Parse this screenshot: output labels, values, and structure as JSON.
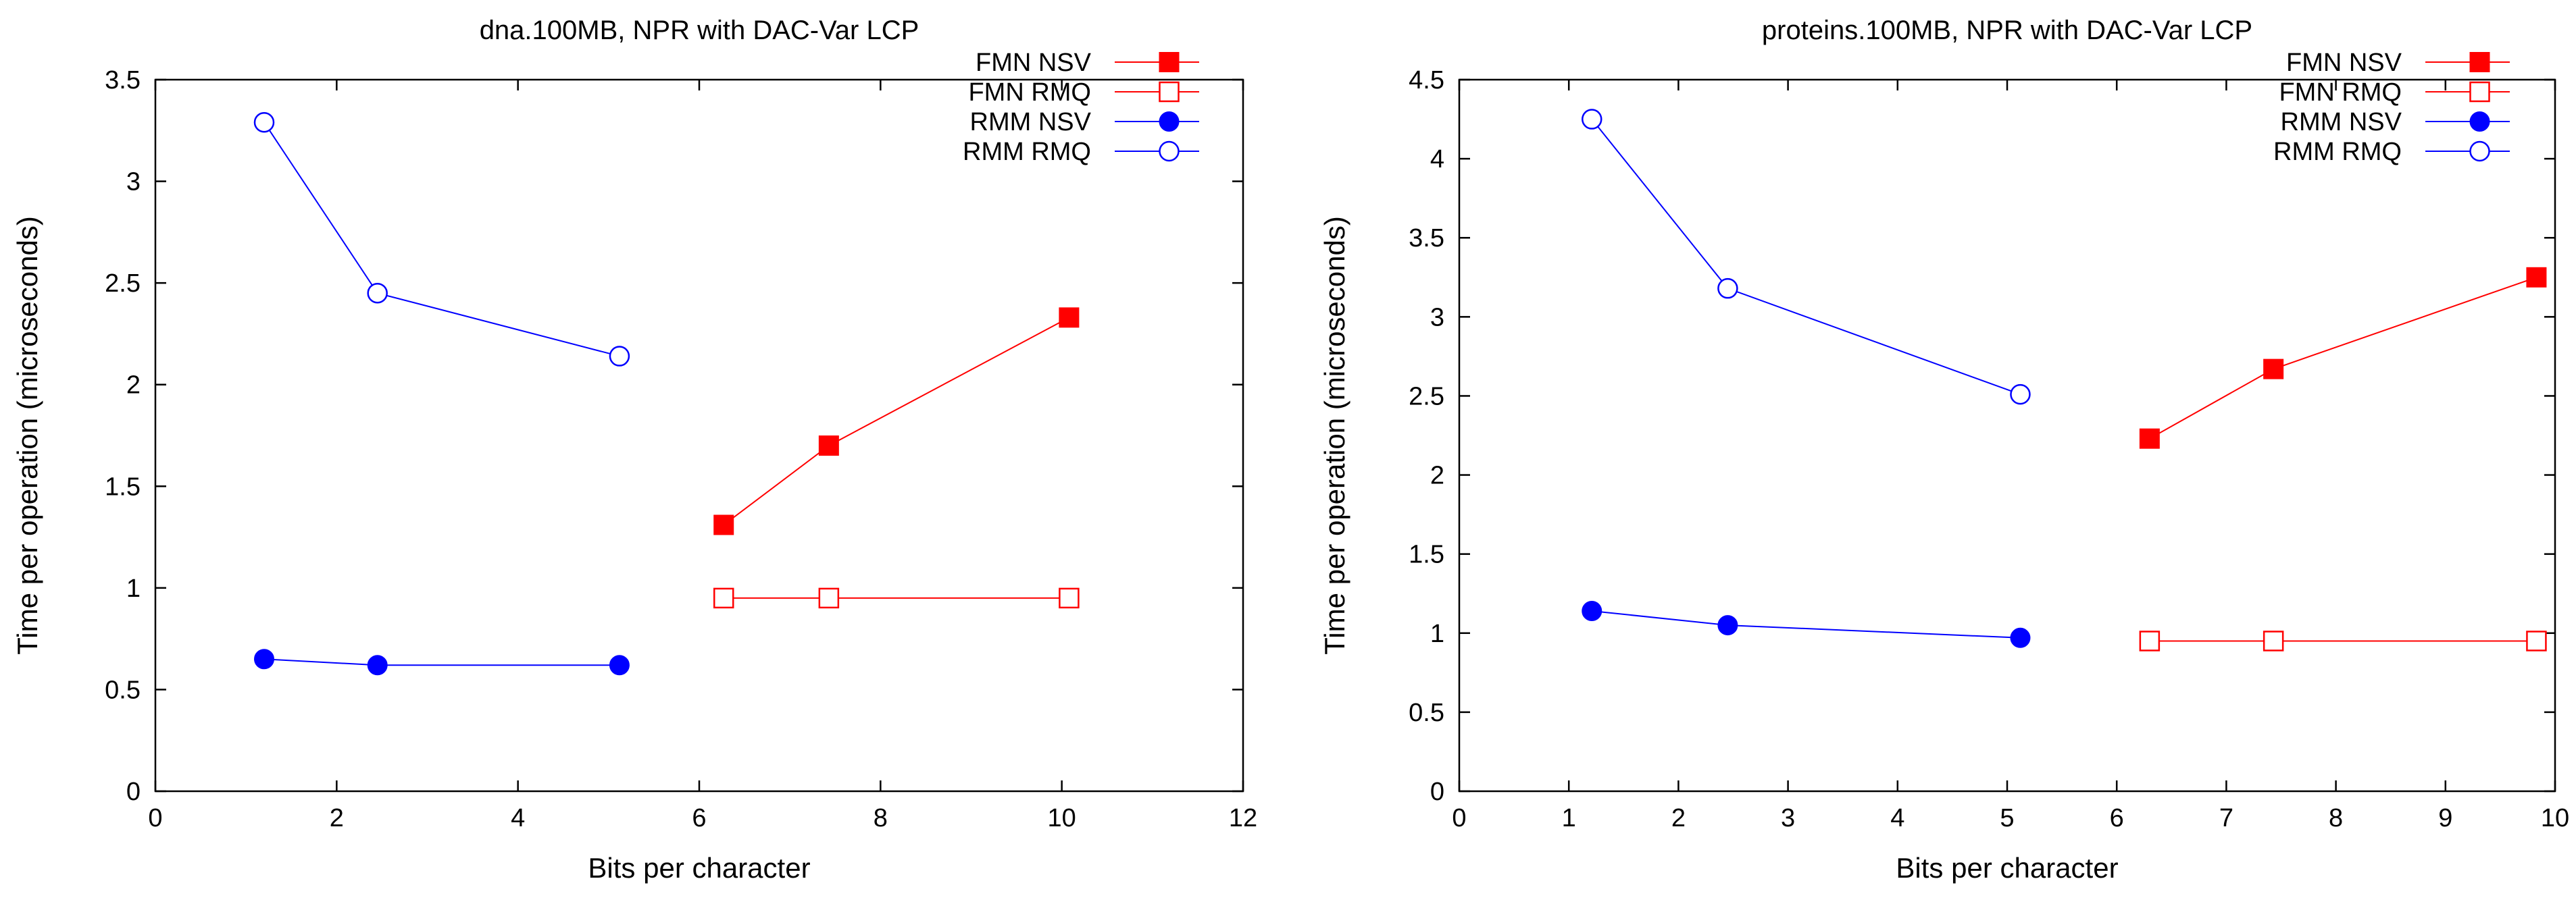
{
  "chart_data": [
    {
      "type": "line",
      "title": "dna.100MB, NPR with DAC-Var LCP",
      "xlabel": "Bits per character",
      "ylabel": "Time per operation (microseconds)",
      "xlim": [
        0,
        12
      ],
      "ylim": [
        0,
        3.5
      ],
      "xticks": [
        0,
        2,
        4,
        6,
        8,
        10,
        12
      ],
      "xtick_labels": [
        "0",
        "2",
        "4",
        "6",
        "8",
        "10",
        "12"
      ],
      "yticks": [
        0,
        0.5,
        1,
        1.5,
        2,
        2.5,
        3,
        3.5
      ],
      "ytick_labels": [
        "0",
        "0.5",
        "1",
        "1.5",
        "2",
        "2.5",
        "3",
        "3.5"
      ],
      "legend_position": "top-right",
      "series": [
        {
          "name": "FMN NSV",
          "color": "#ff0000",
          "marker": "filled-square",
          "x": [
            6.27,
            7.43,
            10.08
          ],
          "y": [
            1.31,
            1.7,
            2.33
          ]
        },
        {
          "name": "FMN RMQ",
          "color": "#ff0000",
          "marker": "open-square",
          "x": [
            6.27,
            7.43,
            10.08
          ],
          "y": [
            0.95,
            0.95,
            0.95
          ]
        },
        {
          "name": "RMM NSV",
          "color": "#0000ff",
          "marker": "filled-circle",
          "x": [
            1.2,
            2.45,
            5.12
          ],
          "y": [
            0.65,
            0.62,
            0.62
          ]
        },
        {
          "name": "RMM RMQ",
          "color": "#0000ff",
          "marker": "open-circle",
          "x": [
            1.2,
            2.45,
            5.12
          ],
          "y": [
            3.29,
            2.45,
            2.14
          ]
        }
      ]
    },
    {
      "type": "line",
      "title": "proteins.100MB, NPR with DAC-Var LCP",
      "xlabel": "Bits per character",
      "ylabel": "Time per operation (microseconds)",
      "xlim": [
        0,
        10
      ],
      "ylim": [
        0,
        4.5
      ],
      "xticks": [
        0,
        1,
        2,
        3,
        4,
        5,
        6,
        7,
        8,
        9,
        10
      ],
      "xtick_labels": [
        "0",
        "1",
        "2",
        "3",
        "4",
        "5",
        "6",
        "7",
        "8",
        "9",
        "10"
      ],
      "yticks": [
        0,
        0.5,
        1,
        1.5,
        2,
        2.5,
        3,
        3.5,
        4,
        4.5
      ],
      "ytick_labels": [
        "0",
        "0.5",
        "1",
        "1.5",
        "2",
        "2.5",
        "3",
        "3.5",
        "4",
        "4.5"
      ],
      "legend_position": "top-right",
      "series": [
        {
          "name": "FMN NSV",
          "color": "#ff0000",
          "marker": "filled-square",
          "x": [
            6.3,
            7.43,
            9.83
          ],
          "y": [
            2.23,
            2.67,
            3.25
          ]
        },
        {
          "name": "FMN RMQ",
          "color": "#ff0000",
          "marker": "open-square",
          "x": [
            6.3,
            7.43,
            9.83
          ],
          "y": [
            0.95,
            0.95,
            0.95
          ]
        },
        {
          "name": "RMM NSV",
          "color": "#0000ff",
          "marker": "filled-circle",
          "x": [
            1.21,
            2.45,
            5.12
          ],
          "y": [
            1.14,
            1.05,
            0.97
          ]
        },
        {
          "name": "RMM RMQ",
          "color": "#0000ff",
          "marker": "open-circle",
          "x": [
            1.21,
            2.45,
            5.12
          ],
          "y": [
            4.25,
            3.18,
            2.51
          ]
        }
      ]
    }
  ]
}
